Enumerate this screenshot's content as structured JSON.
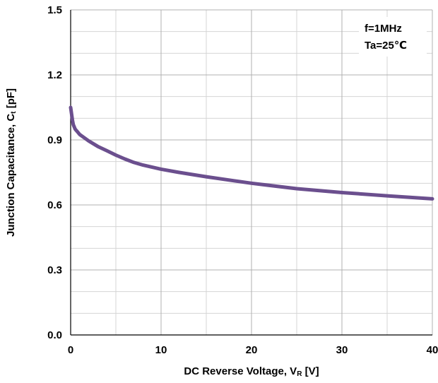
{
  "chart_data": {
    "type": "line",
    "xlabel": "DC Reverse Voltage, VR [V]",
    "xlabel_main": "DC Reverse Voltage, V",
    "xlabel_sub": "R",
    "xlabel_unit": " [V]",
    "ylabel": "Junction Capacitance, Ct [pF]",
    "ylabel_main": "Junction Capacitance, C",
    "ylabel_sub": "t",
    "ylabel_unit": " [pF]",
    "xlim": [
      0,
      40
    ],
    "ylim": [
      0.0,
      1.5
    ],
    "x_ticks": [
      0,
      10,
      20,
      30,
      40
    ],
    "x_tick_labels": [
      "0",
      "10",
      "20",
      "30",
      "40"
    ],
    "y_ticks": [
      0.0,
      0.3,
      0.6,
      0.9,
      1.2,
      1.5
    ],
    "y_tick_labels": [
      "0.0",
      "0.3",
      "0.6",
      "0.9",
      "1.2",
      "1.5"
    ],
    "x_minor_step": 5,
    "y_minor_step": 0.1,
    "grid": true,
    "annotations": [
      "f=1MHz",
      "Ta=25℃"
    ],
    "series": [
      {
        "color": "#6b4f8e",
        "x": [
          0,
          0.1,
          0.2,
          0.3,
          0.5,
          0.7,
          1,
          1.5,
          2,
          3,
          4,
          5,
          6,
          7,
          8,
          10,
          12,
          15,
          18,
          20,
          25,
          30,
          35,
          40
        ],
        "y": [
          1.05,
          1.02,
          0.99,
          0.97,
          0.95,
          0.94,
          0.925,
          0.91,
          0.895,
          0.87,
          0.85,
          0.83,
          0.812,
          0.796,
          0.784,
          0.765,
          0.75,
          0.73,
          0.712,
          0.7,
          0.675,
          0.657,
          0.642,
          0.628
        ]
      }
    ]
  }
}
